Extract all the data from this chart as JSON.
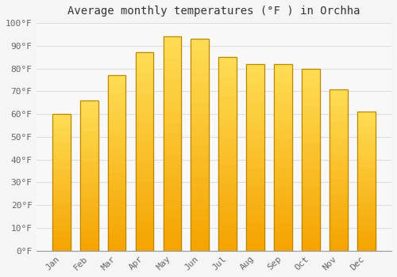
{
  "title": "Average monthly temperatures (°F ) in Orchha",
  "months": [
    "Jan",
    "Feb",
    "Mar",
    "Apr",
    "May",
    "Jun",
    "Jul",
    "Aug",
    "Sep",
    "Oct",
    "Nov",
    "Dec"
  ],
  "values": [
    60,
    66,
    77,
    87,
    94,
    93,
    85,
    82,
    82,
    80,
    71,
    61
  ],
  "bar_color_bottom": "#F5A300",
  "bar_color_top": "#FFDD55",
  "bar_edge_color": "#B8860B",
  "background_color": "#F5F5F5",
  "plot_bg_color": "#F8F8F8",
  "grid_color": "#DDDDDD",
  "yticks": [
    0,
    10,
    20,
    30,
    40,
    50,
    60,
    70,
    80,
    90,
    100
  ],
  "ytick_labels": [
    "0°F",
    "10°F",
    "20°F",
    "30°F",
    "40°F",
    "50°F",
    "60°F",
    "70°F",
    "80°F",
    "90°F",
    "100°F"
  ],
  "ylim": [
    0,
    100
  ],
  "title_fontsize": 10,
  "tick_fontsize": 8,
  "font_color": "#666666",
  "title_color": "#333333",
  "bar_width": 0.65
}
